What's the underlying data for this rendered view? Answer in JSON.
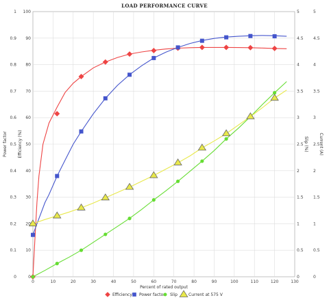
{
  "chart_data": {
    "type": "line",
    "title": "LOAD PERFORMANCE CURVE",
    "xlabel": "Percent of rated output",
    "xlim": [
      0,
      130
    ],
    "xticks": [
      0,
      10,
      20,
      30,
      40,
      50,
      60,
      70,
      80,
      90,
      100,
      110,
      120,
      130
    ],
    "axes": {
      "left_outer": {
        "label": "Power factor",
        "lim": [
          0,
          1
        ],
        "ticks": [
          "0",
          "0.1",
          "0.2",
          "0.3",
          "0.4",
          "0.5",
          "0.6",
          "0.7",
          "0.8",
          "0.9",
          "1"
        ]
      },
      "left_inner": {
        "label": "Efficiency (%)",
        "lim": [
          0,
          100
        ],
        "ticks": [
          "0",
          "10",
          "20",
          "30",
          "40",
          "50",
          "60",
          "70",
          "80",
          "90",
          "100"
        ]
      },
      "right_inner": {
        "label": "Slip (%)",
        "lim": [
          0,
          5
        ],
        "ticks": [
          "0",
          "0.5",
          "1",
          "1.5",
          "2",
          "2.5",
          "3",
          "3.5",
          "4",
          "4.5",
          "5"
        ]
      },
      "right_outer": {
        "label": "Current (A)",
        "lim": [
          0,
          5
        ],
        "ticks": [
          "0",
          "0.5",
          "1",
          "1.5",
          "2",
          "2.5",
          "3",
          "3.5",
          "4",
          "4.5",
          "5"
        ]
      }
    },
    "grid": true,
    "legend": "bottom",
    "series": [
      {
        "name": "Efficiency",
        "axis": "left_inner",
        "color": "#ee4444",
        "marker": "diamond",
        "x": [
          0,
          12,
          24,
          36,
          48,
          60,
          72,
          84,
          96,
          108,
          120
        ],
        "y": [
          0,
          61.5,
          75.5,
          81,
          84,
          85.3,
          86.2,
          86.5,
          86.5,
          86.4,
          86.1
        ],
        "curve_x": [
          0,
          1,
          2,
          3,
          5,
          8,
          12,
          16,
          20,
          24,
          30,
          36,
          42,
          48,
          54,
          60,
          66,
          72,
          78,
          84,
          90,
          96,
          102,
          108,
          114,
          120,
          126
        ],
        "curve_y": [
          0,
          14,
          28,
          38,
          50,
          58,
          64,
          69.5,
          73,
          75.5,
          78.8,
          81,
          82.7,
          84,
          84.8,
          85.4,
          85.9,
          86.2,
          86.4,
          86.5,
          86.5,
          86.5,
          86.45,
          86.4,
          86.25,
          86.1,
          86
        ]
      },
      {
        "name": "Power factor",
        "axis": "left_outer",
        "color": "#4455cc",
        "marker": "square",
        "x": [
          0,
          12,
          24,
          36,
          48,
          60,
          72,
          84,
          96,
          108,
          120
        ],
        "y": [
          0.158,
          0.38,
          0.548,
          0.673,
          0.762,
          0.825,
          0.865,
          0.89,
          0.903,
          0.908,
          0.907
        ],
        "curve_x": [
          0,
          2,
          4,
          6,
          8,
          12,
          16,
          20,
          24,
          30,
          36,
          42,
          48,
          54,
          60,
          66,
          72,
          78,
          84,
          90,
          96,
          102,
          108,
          114,
          120,
          126
        ],
        "curve_y": [
          0.158,
          0.2,
          0.24,
          0.28,
          0.31,
          0.38,
          0.44,
          0.5,
          0.548,
          0.615,
          0.673,
          0.722,
          0.762,
          0.796,
          0.825,
          0.847,
          0.865,
          0.88,
          0.891,
          0.899,
          0.904,
          0.907,
          0.909,
          0.91,
          0.909,
          0.907
        ]
      },
      {
        "name": "Slip",
        "axis": "right_inner",
        "color": "#66dd33",
        "marker": "circle",
        "x": [
          0,
          12,
          24,
          36,
          48,
          60,
          72,
          84,
          96,
          108,
          120
        ],
        "y": [
          0,
          0.25,
          0.5,
          0.8,
          1.1,
          1.45,
          1.8,
          2.18,
          2.6,
          3.02,
          3.47
        ],
        "curve_x": [
          0,
          6,
          12,
          18,
          24,
          30,
          36,
          42,
          48,
          54,
          60,
          66,
          72,
          78,
          84,
          90,
          96,
          102,
          108,
          114,
          120,
          126
        ],
        "curve_y": [
          0,
          0.12,
          0.25,
          0.37,
          0.5,
          0.65,
          0.8,
          0.95,
          1.1,
          1.27,
          1.45,
          1.62,
          1.8,
          1.99,
          2.18,
          2.38,
          2.6,
          2.8,
          3.02,
          3.25,
          3.47,
          3.68
        ]
      },
      {
        "name": "Current at 575 V",
        "axis": "right_outer",
        "color": "#e8e84a",
        "marker": "triangle",
        "x": [
          0,
          12,
          24,
          36,
          48,
          60,
          72,
          84,
          96,
          108,
          120
        ],
        "y": [
          1.0,
          1.15,
          1.3,
          1.49,
          1.69,
          1.91,
          2.15,
          2.43,
          2.7,
          3.02,
          3.37
        ],
        "curve_x": [
          0,
          6,
          12,
          18,
          24,
          30,
          36,
          42,
          48,
          54,
          60,
          66,
          72,
          78,
          84,
          90,
          96,
          102,
          108,
          114,
          120,
          126
        ],
        "curve_y": [
          1.0,
          1.08,
          1.15,
          1.22,
          1.3,
          1.39,
          1.49,
          1.59,
          1.69,
          1.8,
          1.91,
          2.03,
          2.15,
          2.28,
          2.43,
          2.56,
          2.7,
          2.86,
          3.02,
          3.19,
          3.37,
          3.52
        ]
      }
    ]
  }
}
